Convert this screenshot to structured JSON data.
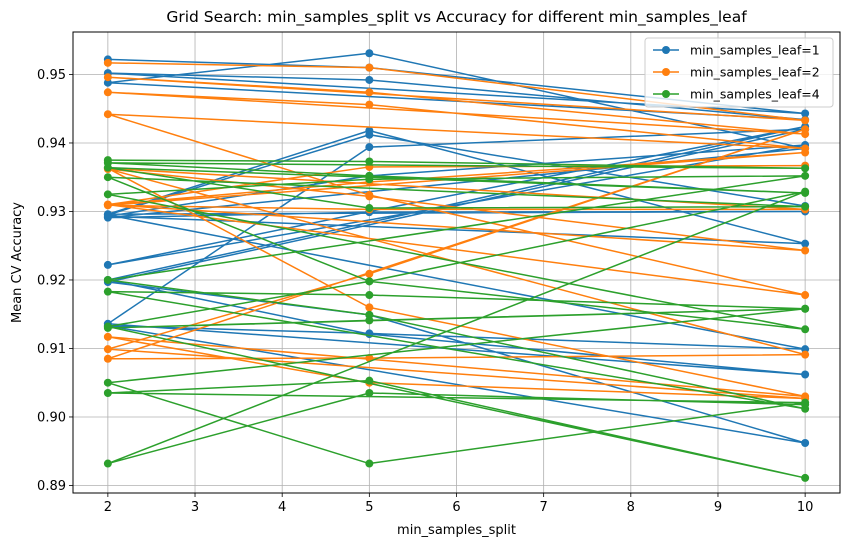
{
  "chart_data": {
    "type": "line",
    "title": "Grid Search: min_samples_split vs Accuracy for different min_samples_leaf",
    "xlabel": "min_samples_split",
    "ylabel": "Mean CV Accuracy",
    "xlim": [
      1.6,
      10.4
    ],
    "ylim": [
      0.8889,
      0.9562
    ],
    "xticks": [
      "2",
      "3",
      "4",
      "5",
      "6",
      "7",
      "8",
      "9",
      "10"
    ],
    "yticks": [
      "0.89",
      "0.90",
      "0.91",
      "0.92",
      "0.93",
      "0.94",
      "0.95"
    ],
    "grid": true,
    "legend_position": "top-right",
    "series": [
      {
        "name": "min_samples_leaf=1",
        "color": "#1f77b4",
        "x": [
          2,
          5,
          10,
          2,
          5,
          10,
          2,
          5,
          10,
          2,
          5,
          10,
          2,
          5,
          10,
          2,
          5,
          10,
          2,
          5,
          10,
          2,
          5,
          10,
          2,
          5,
          10,
          2,
          5,
          10,
          2,
          5,
          10,
          2,
          5,
          10
        ],
        "y": [
          0.9522,
          0.951,
          0.9443,
          0.9502,
          0.9492,
          0.9434,
          0.9488,
          0.9531,
          0.9392,
          0.9291,
          0.9299,
          0.93,
          0.9296,
          0.9418,
          0.9253,
          0.9293,
          0.9352,
          0.9397,
          0.9222,
          0.93,
          0.9424,
          0.92,
          0.9121,
          0.9062,
          0.9136,
          0.9394,
          0.942,
          0.9197,
          0.9149,
          0.8962,
          0.9133,
          0.9122,
          0.9099,
          0.9295,
          0.9412,
          0.9308
        ]
      },
      {
        "name": "min_samples_leaf=2",
        "color": "#ff7f0e",
        "x": [
          2,
          5,
          10,
          2,
          5,
          10,
          2,
          5,
          10,
          2,
          5,
          10,
          2,
          5,
          10,
          2,
          5,
          10,
          2,
          5,
          10,
          2,
          5,
          10,
          2,
          5,
          10,
          2,
          5,
          10,
          2,
          5,
          10,
          2,
          5,
          10
        ],
        "y": [
          0.9517,
          0.951,
          0.9433,
          0.9496,
          0.9474,
          0.9413,
          0.9474,
          0.9456,
          0.9392,
          0.9442,
          0.9324,
          0.9178,
          0.931,
          0.9343,
          0.9386,
          0.9309,
          0.9303,
          0.9303,
          0.9363,
          0.916,
          0.903,
          0.9117,
          0.905,
          0.9027,
          0.9099,
          0.9209,
          0.942,
          0.9085,
          0.9086,
          0.9091,
          0.9362,
          0.9322,
          0.9243,
          0.931,
          0.9365,
          0.9367
        ]
      },
      {
        "name": "min_samples_leaf=4",
        "color": "#2ca02c",
        "x": [
          2,
          5,
          10,
          2,
          5,
          10,
          2,
          5,
          10,
          2,
          5,
          10,
          2,
          5,
          10,
          2,
          5,
          10,
          2,
          5,
          10,
          2,
          5,
          10,
          2,
          5,
          10,
          2,
          5,
          10,
          2,
          5,
          10,
          2,
          5,
          10
        ],
        "y": [
          0.9375,
          0.9373,
          0.9363,
          0.9371,
          0.9352,
          0.9327,
          0.9364,
          0.9305,
          0.9307,
          0.935,
          0.9198,
          0.9128,
          0.9325,
          0.9347,
          0.9352,
          0.92,
          0.9149,
          0.9012,
          0.9183,
          0.9178,
          0.9158,
          0.913,
          0.9141,
          0.9158,
          0.905,
          0.8932,
          0.9021,
          0.9035,
          0.9053,
          0.8911,
          0.9132,
          0.9198,
          0.9329,
          0.8932,
          0.9035,
          0.9018
        ]
      }
    ]
  }
}
